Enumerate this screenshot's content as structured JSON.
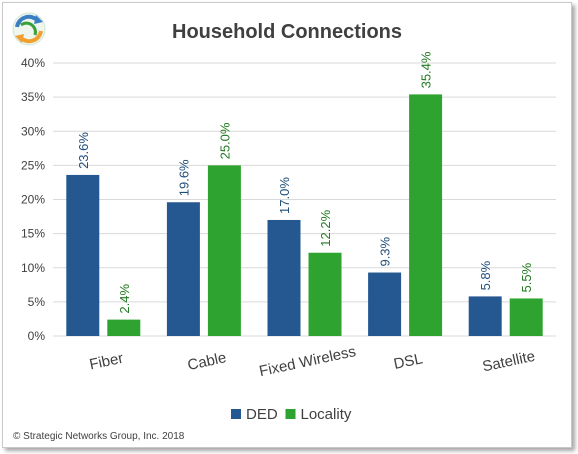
{
  "header": {
    "logo_icon": "recycle-arrows-logo-icon",
    "title": "Household Connections"
  },
  "footer": {
    "copyright": "© Strategic Networks Group, Inc. 2018"
  },
  "colors": {
    "DED": "#255791",
    "Locality": "#2fa32f",
    "DED_label": "#1f4e79",
    "Locality_label": "#217a21",
    "grid": "#d9d9d9"
  },
  "chart_data": {
    "type": "bar",
    "title": "Household Connections",
    "xlabel": "",
    "ylabel": "",
    "categories": [
      "Fiber",
      "Cable",
      "Fixed Wireless",
      "DSL",
      "Satellite"
    ],
    "series": [
      {
        "name": "DED",
        "values": [
          23.6,
          19.6,
          17.0,
          9.3,
          5.8
        ],
        "labels": [
          "23.6%",
          "19.6%",
          "17.0%",
          "9.3%",
          "5.8%"
        ]
      },
      {
        "name": "Locality",
        "values": [
          2.4,
          25.0,
          12.2,
          35.4,
          5.5
        ],
        "labels": [
          "2.4%",
          "25.0%",
          "12.2%",
          "35.4%",
          "5.5%"
        ]
      }
    ],
    "ylim": [
      0,
      40
    ],
    "yticks": [
      0,
      5,
      10,
      15,
      20,
      25,
      30,
      35,
      40
    ],
    "ytick_labels": [
      "0%",
      "5%",
      "10%",
      "15%",
      "20%",
      "25%",
      "30%",
      "35%",
      "40%"
    ],
    "grid": true,
    "legend": "bottom"
  }
}
